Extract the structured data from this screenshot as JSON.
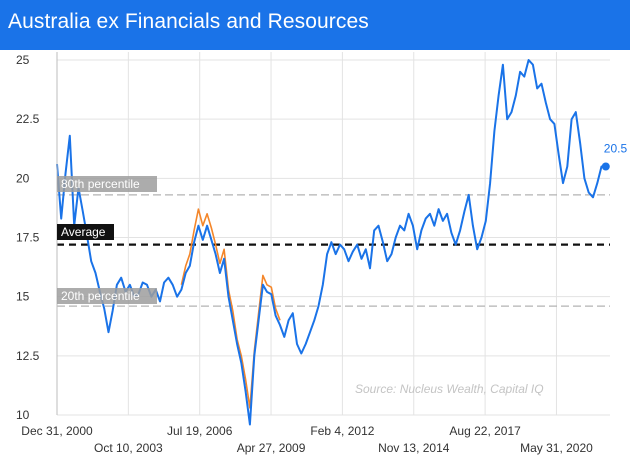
{
  "title": "Australia ex Financials and Resources",
  "colors": {
    "title_bar": "#1a73e8",
    "series_primary": "#1a73e8",
    "series_secondary": "#f4862a",
    "average_line": "#111111",
    "percentile_line": "#b3b3b3",
    "label_box": "#111111",
    "label_box_light": "#9e9e9e",
    "source_text": "#c4c4c4"
  },
  "chart_data": {
    "type": "line",
    "title": "Australia ex Financials and Resources",
    "xlabel": "",
    "ylabel": "",
    "ylim": [
      10,
      25
    ],
    "xlim": [
      "2000-12-31",
      "2022-06-30"
    ],
    "y_ticks": [
      "25",
      "22.5",
      "20",
      "17.5",
      "15",
      "12.5",
      "10"
    ],
    "x_ticks_top_row": [
      "Dec 31, 2000",
      "Jul 19, 2006",
      "Feb 4, 2012",
      "Aug 22, 2017"
    ],
    "x_ticks_bottom_row": [
      "Oct 10, 2003",
      "Apr 27, 2009",
      "Nov 13, 2014",
      "May 31, 2020"
    ],
    "grid": true,
    "reference_lines": [
      {
        "label": "80th percentile",
        "value": 19.3,
        "style": "dashed-light"
      },
      {
        "label": "Average",
        "value": 17.2,
        "style": "dashed-dark"
      },
      {
        "label": "20th percentile",
        "value": 14.6,
        "style": "dashed-light"
      }
    ],
    "last_value_label": "20.5",
    "source": "Source: Nucleus Wealth, Capital IQ",
    "series": [
      {
        "color": "#1a73e8",
        "x": [
          "2000-12-31",
          "2001-03-01",
          "2001-05-01",
          "2001-07-01",
          "2001-09-01",
          "2001-11-01",
          "2002-01-01",
          "2002-03-01",
          "2002-05-01",
          "2002-07-01",
          "2002-09-01",
          "2002-11-01",
          "2003-01-01",
          "2003-03-01",
          "2003-05-01",
          "2003-07-01",
          "2003-09-01",
          "2003-11-01",
          "2004-01-01",
          "2004-03-01",
          "2004-05-01",
          "2004-07-01",
          "2004-09-01",
          "2004-11-01",
          "2005-01-01",
          "2005-03-01",
          "2005-05-01",
          "2005-07-01",
          "2005-09-01",
          "2005-11-01",
          "2006-01-01",
          "2006-03-01",
          "2006-05-01",
          "2006-07-01",
          "2006-09-01",
          "2006-11-01",
          "2007-01-01",
          "2007-03-01",
          "2007-05-01",
          "2007-07-01",
          "2007-09-01",
          "2007-11-01",
          "2008-01-01",
          "2008-03-01",
          "2008-05-01",
          "2008-07-01",
          "2008-09-01",
          "2008-11-01",
          "2009-01-01",
          "2009-03-01",
          "2009-05-01",
          "2009-07-01",
          "2009-09-01",
          "2009-11-01",
          "2010-01-01",
          "2010-03-01",
          "2010-05-01",
          "2010-07-01",
          "2010-09-01",
          "2010-11-01",
          "2011-01-01",
          "2011-03-01",
          "2011-05-01",
          "2011-07-01",
          "2011-09-01",
          "2011-11-01",
          "2012-01-01",
          "2012-03-01",
          "2012-05-01",
          "2012-07-01",
          "2012-09-01",
          "2012-11-01",
          "2013-01-01",
          "2013-03-01",
          "2013-05-01",
          "2013-07-01",
          "2013-09-01",
          "2013-11-01",
          "2014-01-01",
          "2014-03-01",
          "2014-05-01",
          "2014-07-01",
          "2014-09-01",
          "2014-11-01",
          "2015-01-01",
          "2015-03-01",
          "2015-05-01",
          "2015-07-01",
          "2015-09-01",
          "2015-11-01",
          "2016-01-01",
          "2016-03-01",
          "2016-05-01",
          "2016-07-01",
          "2016-09-01",
          "2016-11-01",
          "2017-01-01",
          "2017-03-01",
          "2017-05-01",
          "2017-07-01",
          "2017-09-01",
          "2017-11-01",
          "2018-01-01",
          "2018-03-01",
          "2018-05-01",
          "2018-07-01",
          "2018-09-01",
          "2018-11-01",
          "2019-01-01",
          "2019-03-01",
          "2019-05-01",
          "2019-07-01",
          "2019-09-01",
          "2019-11-01",
          "2020-01-01",
          "2020-03-01",
          "2020-05-01",
          "2020-07-01",
          "2020-09-01",
          "2020-11-01",
          "2021-01-01",
          "2021-03-01",
          "2021-05-01",
          "2021-07-01",
          "2021-09-01",
          "2021-11-01",
          "2022-01-01",
          "2022-03-01",
          "2022-05-01"
        ],
        "values": [
          20.6,
          18.3,
          20.2,
          21.8,
          18.0,
          19.6,
          18.6,
          17.6,
          16.5,
          16.0,
          15.2,
          14.5,
          13.5,
          14.4,
          15.5,
          15.8,
          15.2,
          15.5,
          15.0,
          15.1,
          15.6,
          15.5,
          15.0,
          15.3,
          14.8,
          15.6,
          15.8,
          15.5,
          15.0,
          15.3,
          16.0,
          16.3,
          17.3,
          18.0,
          17.4,
          18.0,
          17.4,
          16.8,
          16.0,
          16.6,
          15.0,
          14.0,
          13.0,
          12.2,
          11.0,
          9.6,
          12.5,
          14.0,
          15.5,
          15.2,
          15.1,
          14.2,
          13.8,
          13.3,
          14.0,
          14.3,
          13.0,
          12.6,
          13.0,
          13.5,
          14.0,
          14.6,
          15.5,
          16.8,
          17.3,
          16.8,
          17.2,
          17.0,
          16.5,
          16.9,
          17.2,
          16.6,
          17.0,
          16.2,
          17.8,
          18.0,
          17.3,
          16.5,
          16.8,
          17.5,
          18.0,
          17.8,
          18.5,
          18.0,
          17.0,
          17.8,
          18.3,
          18.5,
          18.0,
          18.7,
          18.2,
          18.5,
          17.7,
          17.2,
          17.8,
          18.6,
          19.3,
          18.0,
          17.0,
          17.5,
          18.2,
          19.8,
          22.0,
          23.5,
          24.8,
          22.5,
          22.8,
          23.5,
          24.5,
          24.3,
          25.0,
          24.8,
          23.8,
          24.0,
          23.2,
          22.5,
          22.3,
          21.0,
          19.8,
          20.5,
          22.5,
          22.8,
          21.5,
          20.0,
          19.4,
          19.2,
          19.8,
          20.5,
          20.5
        ]
      },
      {
        "color": "#f4862a",
        "x": [
          "2005-11-01",
          "2006-01-01",
          "2006-03-01",
          "2006-05-01",
          "2006-07-01",
          "2006-09-01",
          "2006-11-01",
          "2007-01-01",
          "2007-03-01",
          "2007-05-01",
          "2007-07-01",
          "2007-09-01",
          "2007-11-01",
          "2008-01-01",
          "2008-03-01",
          "2008-05-01",
          "2008-07-01",
          "2008-09-01",
          "2008-11-01",
          "2009-01-01",
          "2009-03-01",
          "2009-05-01",
          "2009-07-01",
          "2009-09-01"
        ],
        "values": [
          15.5,
          16.3,
          16.8,
          17.8,
          18.7,
          18.0,
          18.5,
          17.9,
          17.2,
          16.4,
          17.0,
          15.3,
          14.4,
          13.2,
          12.5,
          11.5,
          10.3,
          12.7,
          14.3,
          15.9,
          15.5,
          15.4,
          14.5,
          14.0
        ]
      }
    ]
  }
}
